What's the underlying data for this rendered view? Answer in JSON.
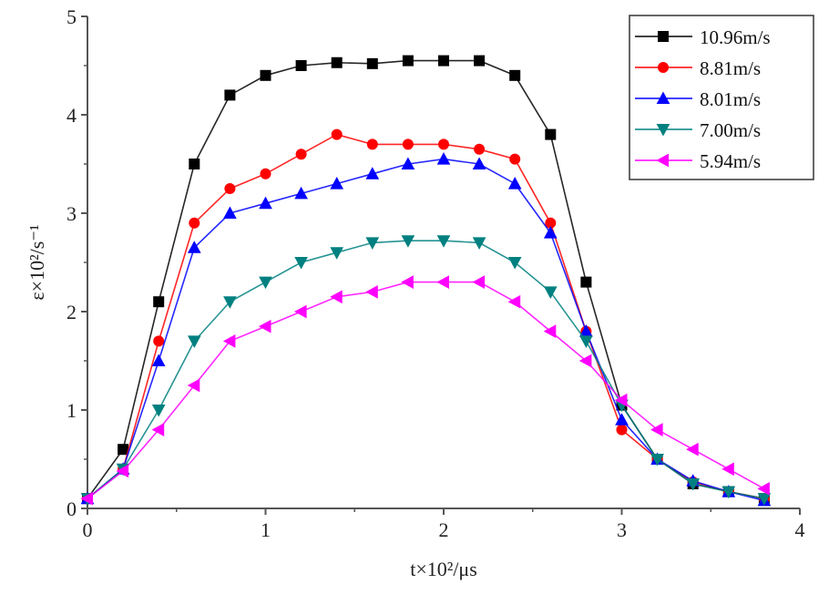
{
  "chart_data": {
    "type": "line",
    "title": "",
    "xlabel": "t×10²/μs",
    "ylabel": "ε×10²/s⁻¹",
    "xlim": [
      0,
      4
    ],
    "ylim": [
      0,
      5
    ],
    "x_ticks": [
      "0",
      "1",
      "2",
      "3",
      "4"
    ],
    "y_ticks": [
      "0",
      "1",
      "2",
      "3",
      "4",
      "5"
    ],
    "grid": false,
    "legend_position": "upper right",
    "x": [
      0,
      0.2,
      0.4,
      0.6,
      0.8,
      1.0,
      1.2,
      1.4,
      1.6,
      1.8,
      2.0,
      2.2,
      2.4,
      2.6,
      2.8,
      3.0,
      3.2,
      3.4,
      3.6,
      3.8
    ],
    "series": [
      {
        "name": "10.96m/s",
        "color": "#000000",
        "marker": "square",
        "values": [
          0.1,
          0.6,
          2.1,
          3.5,
          4.2,
          4.4,
          4.5,
          4.53,
          4.52,
          4.55,
          4.55,
          4.55,
          4.4,
          3.8,
          2.3,
          1.05,
          0.5,
          0.25,
          0.17,
          0.1
        ]
      },
      {
        "name": "8.81m/s",
        "color": "#ff0000",
        "marker": "circle",
        "values": [
          0.1,
          0.4,
          1.7,
          2.9,
          3.25,
          3.4,
          3.6,
          3.8,
          3.7,
          3.7,
          3.7,
          3.65,
          3.55,
          2.9,
          1.8,
          0.8,
          0.5,
          0.27,
          0.17,
          0.1
        ]
      },
      {
        "name": "8.01m/s",
        "color": "#0000ff",
        "marker": "triangle-up",
        "values": [
          0.1,
          0.4,
          1.5,
          2.65,
          3.0,
          3.1,
          3.2,
          3.3,
          3.4,
          3.5,
          3.55,
          3.5,
          3.3,
          2.8,
          1.8,
          0.9,
          0.5,
          0.28,
          0.17,
          0.08
        ]
      },
      {
        "name": "7.00m/s",
        "color": "#008080",
        "marker": "triangle-down",
        "values": [
          0.1,
          0.4,
          1.0,
          1.7,
          2.1,
          2.3,
          2.5,
          2.6,
          2.7,
          2.72,
          2.72,
          2.7,
          2.5,
          2.2,
          1.7,
          1.05,
          0.5,
          0.25,
          0.17,
          0.1
        ]
      },
      {
        "name": "5.94m/s",
        "color": "#ff00ff",
        "marker": "triangle-left",
        "values": [
          0.1,
          0.38,
          0.8,
          1.25,
          1.7,
          1.85,
          2.0,
          2.15,
          2.2,
          2.3,
          2.3,
          2.3,
          2.1,
          1.8,
          1.5,
          1.1,
          0.8,
          0.6,
          0.4,
          0.2
        ]
      }
    ]
  }
}
